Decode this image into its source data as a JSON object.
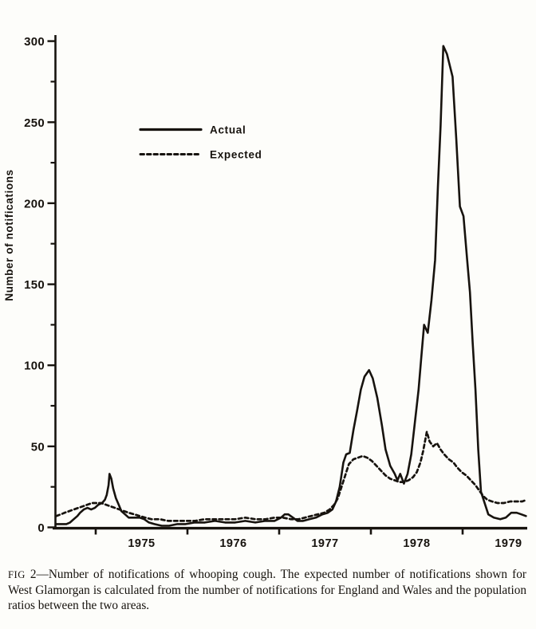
{
  "figure": {
    "y_axis": {
      "label": "Number of notifications",
      "ticks": [
        0,
        50,
        100,
        150,
        200,
        250,
        300
      ],
      "tick_labels": [
        "0",
        "50",
        "100",
        "150",
        "200",
        "250",
        "300"
      ],
      "minor_ticks": [
        25,
        75,
        125,
        175,
        225,
        275
      ]
    },
    "x_axis": {
      "year_labels": [
        "1975",
        "1976",
        "1977",
        "1978",
        "1979"
      ],
      "tick_years": [
        1975,
        1976,
        1977,
        1978,
        1979
      ]
    },
    "legend": [
      {
        "label": "Actual",
        "style": "solid"
      },
      {
        "label": "Expected",
        "style": "dashed"
      }
    ],
    "caption": {
      "label": "FIG",
      "number": " 2",
      "body": "—Number of notifications of whooping cough. The expected number of notifications shown for West Glamorgan is calculated from the number of notifications for England and Wales and the population ratios between the two areas."
    },
    "ink_color": "#17130e",
    "paper_color": "#fdfdfa"
  },
  "chart_data": {
    "type": "line",
    "title": "",
    "xlabel": "",
    "ylabel": "Number of notifications",
    "ylim": [
      0,
      300
    ],
    "xlim": [
      1974.55,
      1979.72
    ],
    "x_unit": "decimal_year",
    "grid": false,
    "legend_position": "upper-left-inside",
    "series": [
      {
        "name": "Actual",
        "line": "solid",
        "color": "#17130e",
        "points": [
          [
            1974.57,
            2
          ],
          [
            1974.62,
            2
          ],
          [
            1974.68,
            2
          ],
          [
            1974.72,
            3
          ],
          [
            1974.76,
            5
          ],
          [
            1974.8,
            7
          ],
          [
            1974.83,
            9
          ],
          [
            1974.87,
            11
          ],
          [
            1974.91,
            12
          ],
          [
            1974.95,
            11
          ],
          [
            1974.99,
            12
          ],
          [
            1975.03,
            14
          ],
          [
            1975.07,
            15
          ],
          [
            1975.1,
            17
          ],
          [
            1975.12,
            20
          ],
          [
            1975.14,
            26
          ],
          [
            1975.15,
            33
          ],
          [
            1975.17,
            30
          ],
          [
            1975.19,
            24
          ],
          [
            1975.22,
            18
          ],
          [
            1975.25,
            14
          ],
          [
            1975.28,
            10
          ],
          [
            1975.32,
            8
          ],
          [
            1975.36,
            6
          ],
          [
            1975.42,
            6
          ],
          [
            1975.48,
            6
          ],
          [
            1975.53,
            5
          ],
          [
            1975.58,
            3
          ],
          [
            1975.64,
            2
          ],
          [
            1975.72,
            1
          ],
          [
            1975.8,
            1
          ],
          [
            1975.89,
            2
          ],
          [
            1975.98,
            2
          ],
          [
            1976.08,
            3
          ],
          [
            1976.19,
            3
          ],
          [
            1976.3,
            4
          ],
          [
            1976.41,
            3
          ],
          [
            1976.52,
            3
          ],
          [
            1976.63,
            4
          ],
          [
            1976.74,
            3
          ],
          [
            1976.85,
            4
          ],
          [
            1976.95,
            4
          ],
          [
            1977.02,
            6
          ],
          [
            1977.06,
            8
          ],
          [
            1977.1,
            8
          ],
          [
            1977.15,
            6
          ],
          [
            1977.2,
            4
          ],
          [
            1977.26,
            4
          ],
          [
            1977.33,
            5
          ],
          [
            1977.4,
            6
          ],
          [
            1977.47,
            8
          ],
          [
            1977.53,
            9
          ],
          [
            1977.58,
            11
          ],
          [
            1977.62,
            16
          ],
          [
            1977.66,
            25
          ],
          [
            1977.7,
            40
          ],
          [
            1977.73,
            45
          ],
          [
            1977.77,
            46
          ],
          [
            1977.81,
            60
          ],
          [
            1977.85,
            72
          ],
          [
            1977.89,
            85
          ],
          [
            1977.93,
            93
          ],
          [
            1977.98,
            97
          ],
          [
            1978.02,
            92
          ],
          [
            1978.07,
            80
          ],
          [
            1978.12,
            63
          ],
          [
            1978.16,
            48
          ],
          [
            1978.21,
            38
          ],
          [
            1978.26,
            33
          ],
          [
            1978.29,
            29
          ],
          [
            1978.32,
            33
          ],
          [
            1978.36,
            27
          ],
          [
            1978.4,
            33
          ],
          [
            1978.44,
            45
          ],
          [
            1978.48,
            65
          ],
          [
            1978.52,
            85
          ],
          [
            1978.55,
            105
          ],
          [
            1978.58,
            125
          ],
          [
            1978.62,
            120
          ],
          [
            1978.66,
            140
          ],
          [
            1978.7,
            165
          ],
          [
            1978.73,
            210
          ],
          [
            1978.76,
            248
          ],
          [
            1978.79,
            297
          ],
          [
            1978.83,
            292
          ],
          [
            1978.89,
            278
          ],
          [
            1978.93,
            240
          ],
          [
            1978.97,
            198
          ],
          [
            1979.01,
            192
          ],
          [
            1979.05,
            165
          ],
          [
            1979.08,
            145
          ],
          [
            1979.11,
            114
          ],
          [
            1979.14,
            85
          ],
          [
            1979.17,
            48
          ],
          [
            1979.2,
            22
          ],
          [
            1979.24,
            15
          ],
          [
            1979.28,
            8
          ],
          [
            1979.34,
            6
          ],
          [
            1979.41,
            5
          ],
          [
            1979.47,
            6
          ],
          [
            1979.53,
            9
          ],
          [
            1979.59,
            9
          ],
          [
            1979.64,
            8
          ],
          [
            1979.69,
            7
          ]
        ]
      },
      {
        "name": "Expected",
        "line": "dashed",
        "color": "#17130e",
        "points": [
          [
            1974.57,
            7
          ],
          [
            1974.62,
            8
          ],
          [
            1974.66,
            9
          ],
          [
            1974.71,
            10
          ],
          [
            1974.76,
            11
          ],
          [
            1974.81,
            12
          ],
          [
            1974.86,
            13
          ],
          [
            1974.91,
            14
          ],
          [
            1974.96,
            15
          ],
          [
            1975.01,
            15
          ],
          [
            1975.06,
            15
          ],
          [
            1975.11,
            14
          ],
          [
            1975.16,
            13
          ],
          [
            1975.21,
            12
          ],
          [
            1975.26,
            11
          ],
          [
            1975.31,
            10
          ],
          [
            1975.36,
            9
          ],
          [
            1975.42,
            8
          ],
          [
            1975.48,
            7
          ],
          [
            1975.54,
            6
          ],
          [
            1975.61,
            5
          ],
          [
            1975.7,
            5
          ],
          [
            1975.79,
            4
          ],
          [
            1975.88,
            4
          ],
          [
            1975.97,
            4
          ],
          [
            1976.08,
            4
          ],
          [
            1976.19,
            5
          ],
          [
            1976.3,
            5
          ],
          [
            1976.41,
            5
          ],
          [
            1976.52,
            5
          ],
          [
            1976.63,
            6
          ],
          [
            1976.74,
            5
          ],
          [
            1976.85,
            5
          ],
          [
            1976.95,
            6
          ],
          [
            1977.04,
            6
          ],
          [
            1977.13,
            5
          ],
          [
            1977.21,
            5
          ],
          [
            1977.28,
            6
          ],
          [
            1977.35,
            7
          ],
          [
            1977.42,
            8
          ],
          [
            1977.49,
            9
          ],
          [
            1977.55,
            11
          ],
          [
            1977.6,
            14
          ],
          [
            1977.64,
            18
          ],
          [
            1977.68,
            25
          ],
          [
            1977.72,
            32
          ],
          [
            1977.76,
            39
          ],
          [
            1977.81,
            42
          ],
          [
            1977.86,
            43
          ],
          [
            1977.91,
            44
          ],
          [
            1977.96,
            43
          ],
          [
            1978.01,
            41
          ],
          [
            1978.06,
            38
          ],
          [
            1978.11,
            35
          ],
          [
            1978.16,
            32
          ],
          [
            1978.21,
            30
          ],
          [
            1978.26,
            29
          ],
          [
            1978.31,
            28
          ],
          [
            1978.36,
            28
          ],
          [
            1978.41,
            29
          ],
          [
            1978.46,
            31
          ],
          [
            1978.5,
            34
          ],
          [
            1978.54,
            40
          ],
          [
            1978.57,
            47
          ],
          [
            1978.61,
            59
          ],
          [
            1978.64,
            53
          ],
          [
            1978.68,
            50
          ],
          [
            1978.72,
            52
          ],
          [
            1978.76,
            48
          ],
          [
            1978.8,
            45
          ],
          [
            1978.85,
            42
          ],
          [
            1978.9,
            40
          ],
          [
            1978.94,
            37
          ],
          [
            1978.99,
            34
          ],
          [
            1979.04,
            32
          ],
          [
            1979.09,
            29
          ],
          [
            1979.14,
            26
          ],
          [
            1979.19,
            22
          ],
          [
            1979.23,
            19
          ],
          [
            1979.27,
            17
          ],
          [
            1979.32,
            16
          ],
          [
            1979.38,
            15
          ],
          [
            1979.45,
            15
          ],
          [
            1979.52,
            16
          ],
          [
            1979.59,
            16
          ],
          [
            1979.65,
            16
          ],
          [
            1979.7,
            17
          ]
        ]
      }
    ]
  }
}
